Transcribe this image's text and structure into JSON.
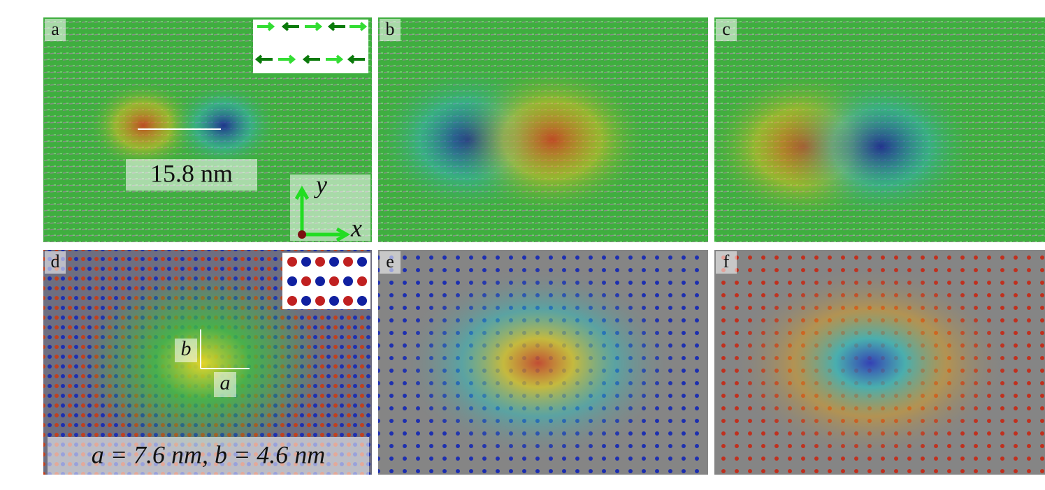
{
  "panels": [
    {
      "label": "a"
    },
    {
      "label": "b"
    },
    {
      "label": "c"
    },
    {
      "label": "d"
    },
    {
      "label": "e"
    },
    {
      "label": "f"
    }
  ],
  "panel_a": {
    "scale_label": "15.8 nm",
    "axis_y": "y",
    "axis_x": "x"
  },
  "panel_d": {
    "lattice_b": "b",
    "lattice_a": "a",
    "lattice_text": "a = 7.6 nm, b = 4.6 nm"
  }
}
